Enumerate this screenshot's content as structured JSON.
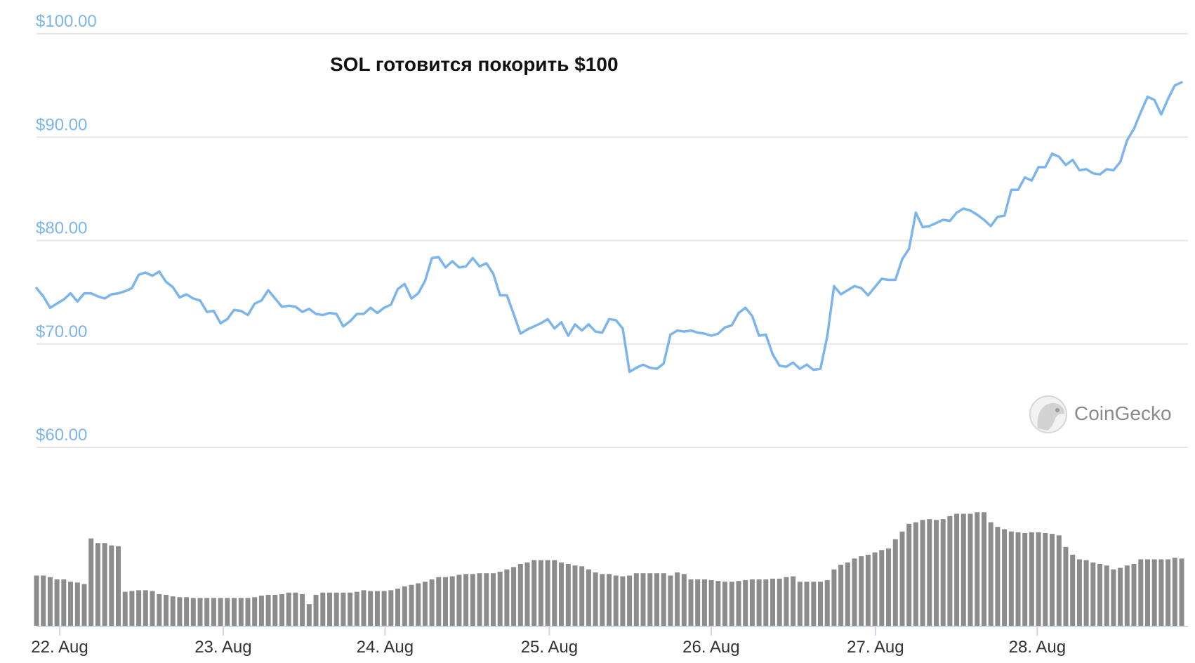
{
  "colors": {
    "price_line": "#7cb5ec",
    "volume_bar": "#8c8c8c",
    "ytick_text": "#7cb5ec",
    "grid": "#e6e6e6",
    "axis": "#ccd6eb"
  },
  "watermark": {
    "text": "CoinGecko",
    "icon": "gecko-logo-icon"
  },
  "chart_data": {
    "type": "line",
    "title": "SOL готовится покорить $100",
    "xlabel": "",
    "ylabel": "",
    "ylim": [
      60,
      100
    ],
    "yticks": [
      100,
      90,
      80,
      70,
      60
    ],
    "ytick_labels": [
      "$100.00",
      "$90.00",
      "$80.00",
      "$70.00",
      "$60.00"
    ],
    "xticks": [
      0.93,
      7.5,
      14.0,
      20.6,
      27.1,
      33.7,
      40.2
    ],
    "xtick_labels": [
      "22. Aug",
      "23. Aug",
      "24. Aug",
      "25. Aug",
      "26. Aug",
      "27. Aug",
      "28. Aug"
    ],
    "grid": true,
    "legend": "none",
    "price_x_range": [
      0,
      46
    ],
    "series": [
      {
        "values": [
          75.4,
          74.6,
          73.5,
          73.9,
          74.3,
          74.9,
          74.1,
          74.9,
          74.9,
          74.6,
          74.4,
          74.8,
          74.9,
          75.1,
          75.4,
          76.7,
          76.9,
          76.6,
          77.0,
          76.0,
          75.5,
          74.5,
          74.8,
          74.4,
          74.2,
          73.1,
          73.2,
          72.0,
          72.4,
          73.3,
          73.2,
          72.8,
          73.9,
          74.2,
          75.2,
          74.4,
          73.6,
          73.7,
          73.6,
          73.1,
          73.4,
          72.9,
          72.8,
          73.0,
          72.9,
          71.7,
          72.2,
          72.9,
          72.9,
          73.5,
          73.0,
          73.5,
          73.8,
          75.3,
          75.8,
          74.4,
          74.9,
          76.1,
          78.3,
          78.4,
          77.4,
          78.0,
          77.4,
          77.5,
          78.3,
          77.5,
          77.8,
          76.8,
          74.7,
          74.7,
          72.9,
          71.0,
          71.4,
          71.7,
          72.0,
          72.4,
          71.5,
          72.1,
          70.8,
          71.9,
          71.3,
          71.9,
          71.2,
          71.1,
          72.4,
          72.3,
          71.5,
          67.3,
          67.7,
          68.0,
          67.7,
          67.6,
          68.1,
          70.9,
          71.3,
          71.2,
          71.3,
          71.1,
          71.0,
          70.8,
          71.0,
          71.6,
          71.8,
          73.0,
          73.5,
          72.7,
          70.8,
          70.9,
          69.0,
          67.9,
          67.8,
          68.2,
          67.6,
          68.0,
          67.5,
          67.6,
          70.7,
          75.6,
          74.8,
          75.2,
          75.6,
          75.4,
          74.7,
          75.5,
          76.3,
          76.2,
          76.2,
          78.2,
          79.2,
          82.7,
          81.3,
          81.4,
          81.7,
          82.0,
          81.9,
          82.7,
          83.1,
          82.9,
          82.5,
          82.0,
          81.4,
          82.3,
          82.4,
          84.9,
          84.9,
          86.1,
          85.8,
          87.1,
          87.1,
          88.4,
          88.1,
          87.3,
          87.8,
          86.8,
          86.9,
          86.5,
          86.4,
          86.9,
          86.8,
          87.6,
          89.7,
          90.8,
          92.4,
          93.9,
          93.6,
          92.2,
          93.7,
          95.0,
          95.3
        ]
      },
      {
        "name": "volume",
        "x_range": [
          0,
          46
        ],
        "values": [
          6.5,
          6.5,
          6.3,
          6.0,
          6.0,
          5.7,
          5.6,
          5.4,
          11.3,
          10.7,
          10.7,
          10.4,
          10.3,
          4.4,
          4.5,
          4.6,
          4.6,
          4.5,
          4.1,
          4.0,
          3.8,
          3.7,
          3.7,
          3.6,
          3.6,
          3.6,
          3.6,
          3.6,
          3.6,
          3.6,
          3.6,
          3.6,
          3.7,
          3.9,
          4.0,
          4.0,
          4.1,
          4.3,
          4.3,
          4.1,
          2.8,
          4.0,
          4.3,
          4.3,
          4.3,
          4.3,
          4.3,
          4.4,
          4.6,
          4.5,
          4.5,
          4.5,
          4.6,
          4.8,
          5.1,
          5.3,
          5.5,
          5.7,
          6.0,
          6.3,
          6.3,
          6.4,
          6.6,
          6.7,
          6.7,
          6.8,
          6.8,
          6.8,
          7.0,
          7.3,
          7.6,
          8.0,
          8.2,
          8.5,
          8.5,
          8.5,
          8.5,
          8.2,
          8.0,
          7.8,
          7.7,
          7.3,
          6.9,
          6.7,
          6.7,
          6.5,
          6.4,
          6.5,
          6.8,
          6.8,
          6.8,
          6.8,
          6.8,
          6.5,
          6.9,
          6.7,
          6.0,
          6.0,
          6.0,
          5.9,
          5.8,
          5.7,
          5.7,
          5.8,
          5.9,
          6.0,
          6.0,
          6.0,
          6.1,
          6.1,
          6.3,
          6.4,
          5.7,
          5.7,
          5.7,
          5.7,
          5.9,
          7.3,
          7.9,
          8.2,
          8.7,
          9.0,
          9.2,
          9.5,
          9.8,
          10.0,
          11.2,
          12.2,
          13.2,
          13.4,
          13.7,
          13.8,
          13.7,
          13.8,
          14.2,
          14.5,
          14.5,
          14.5,
          14.7,
          14.7,
          13.4,
          12.8,
          12.5,
          12.2,
          12.1,
          12.0,
          12.1,
          12.1,
          12.0,
          11.9,
          11.7,
          10.2,
          9.2,
          8.6,
          8.5,
          8.2,
          8.0,
          7.8,
          7.3,
          7.5,
          7.8,
          8.0,
          8.6,
          8.6,
          8.6,
          8.6,
          8.6,
          8.8,
          8.7
        ]
      }
    ]
  }
}
